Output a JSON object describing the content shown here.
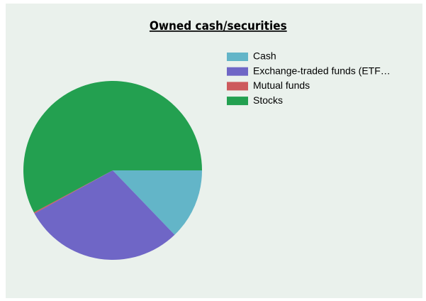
{
  "chart_data": {
    "type": "pie",
    "title": "Owned cash/securities",
    "categories": [
      "Cash",
      "Exchange-traded funds (ETF…",
      "Mutual funds",
      "Stocks"
    ],
    "values": [
      12.8,
      29.2,
      0.2,
      57.8
    ],
    "colors": [
      "#63b5c8",
      "#6f66c6",
      "#cd5a5d",
      "#23a050"
    ],
    "legend": "top-right"
  }
}
